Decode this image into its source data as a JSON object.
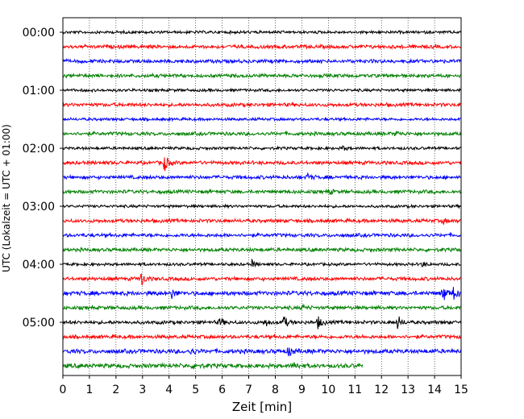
{
  "chart_data": {
    "type": "line",
    "title": "",
    "xlabel": "Zeit  [min]",
    "ylabel": "UTC (Lokalzeit = UTC + 01:00)",
    "xlim": [
      0,
      15
    ],
    "x_ticks": [
      0,
      1,
      2,
      3,
      4,
      5,
      6,
      7,
      8,
      9,
      10,
      11,
      12,
      13,
      14,
      15
    ],
    "y_tick_labels": [
      "00:00",
      "01:00",
      "02:00",
      "03:00",
      "04:00",
      "05:00"
    ],
    "grid": "vertical-dotted",
    "trace_interval_minutes": 15,
    "trace_colors": [
      "#000000",
      "#ff0000",
      "#0000ff",
      "#008000"
    ],
    "traces": [
      {
        "start": "00:00",
        "end_min": 15,
        "amp": 2.0,
        "events": []
      },
      {
        "start": "00:15",
        "end_min": 15,
        "amp": 2.5,
        "events": []
      },
      {
        "start": "00:30",
        "end_min": 15,
        "amp": 2.5,
        "events": []
      },
      {
        "start": "00:45",
        "end_min": 15,
        "amp": 2.5,
        "events": []
      },
      {
        "start": "01:00",
        "end_min": 15,
        "amp": 2.0,
        "events": []
      },
      {
        "start": "01:15",
        "end_min": 15,
        "amp": 2.5,
        "events": []
      },
      {
        "start": "01:30",
        "end_min": 15,
        "amp": 2.0,
        "events": []
      },
      {
        "start": "01:45",
        "end_min": 15,
        "amp": 2.5,
        "events": [
          {
            "t": 12.5,
            "a": 4
          }
        ]
      },
      {
        "start": "02:00",
        "end_min": 15,
        "amp": 2.0,
        "events": [
          {
            "t": 10.5,
            "a": 3.5
          }
        ]
      },
      {
        "start": "02:15",
        "end_min": 15,
        "amp": 2.5,
        "events": [
          {
            "t": 3.8,
            "a": 12
          }
        ]
      },
      {
        "start": "02:30",
        "end_min": 15,
        "amp": 2.5,
        "events": [
          {
            "t": 9.2,
            "a": 5
          }
        ]
      },
      {
        "start": "02:45",
        "end_min": 15,
        "amp": 2.5,
        "events": [
          {
            "t": 10.0,
            "a": 3
          }
        ]
      },
      {
        "start": "03:00",
        "end_min": 15,
        "amp": 2.0,
        "events": []
      },
      {
        "start": "03:15",
        "end_min": 15,
        "amp": 2.5,
        "events": [
          {
            "t": 14.3,
            "a": 3.5
          }
        ]
      },
      {
        "start": "03:30",
        "end_min": 15,
        "amp": 2.5,
        "events": []
      },
      {
        "start": "03:45",
        "end_min": 15,
        "amp": 2.5,
        "events": []
      },
      {
        "start": "04:00",
        "end_min": 15,
        "amp": 2.0,
        "events": [
          {
            "t": 7.1,
            "a": 5
          },
          {
            "t": 13.5,
            "a": 4
          }
        ]
      },
      {
        "start": "04:15",
        "end_min": 15,
        "amp": 2.5,
        "events": [
          {
            "t": 2.9,
            "a": 13
          }
        ]
      },
      {
        "start": "04:30",
        "end_min": 15,
        "amp": 3.0,
        "events": [
          {
            "t": 4.1,
            "a": 6
          },
          {
            "t": 14.3,
            "a": 12
          },
          {
            "t": 14.7,
            "a": 8
          }
        ]
      },
      {
        "start": "04:45",
        "end_min": 15,
        "amp": 2.5,
        "events": [
          {
            "t": 9.0,
            "a": 3.5
          }
        ]
      },
      {
        "start": "05:00",
        "end_min": 15,
        "amp": 2.5,
        "events": [
          {
            "t": 5.9,
            "a": 6
          },
          {
            "t": 7.6,
            "a": 6
          },
          {
            "t": 8.3,
            "a": 9
          },
          {
            "t": 9.6,
            "a": 8
          },
          {
            "t": 12.6,
            "a": 9
          }
        ]
      },
      {
        "start": "05:15",
        "end_min": 15,
        "amp": 2.5,
        "events": []
      },
      {
        "start": "05:30",
        "end_min": 15,
        "amp": 3.0,
        "events": [
          {
            "t": 4.8,
            "a": 5
          },
          {
            "t": 8.5,
            "a": 7
          }
        ]
      },
      {
        "start": "05:45",
        "end_min": 11.3,
        "amp": 3.0,
        "events": [
          {
            "t": 4.9,
            "a": 4
          },
          {
            "t": 8.7,
            "a": 5
          }
        ]
      }
    ]
  }
}
